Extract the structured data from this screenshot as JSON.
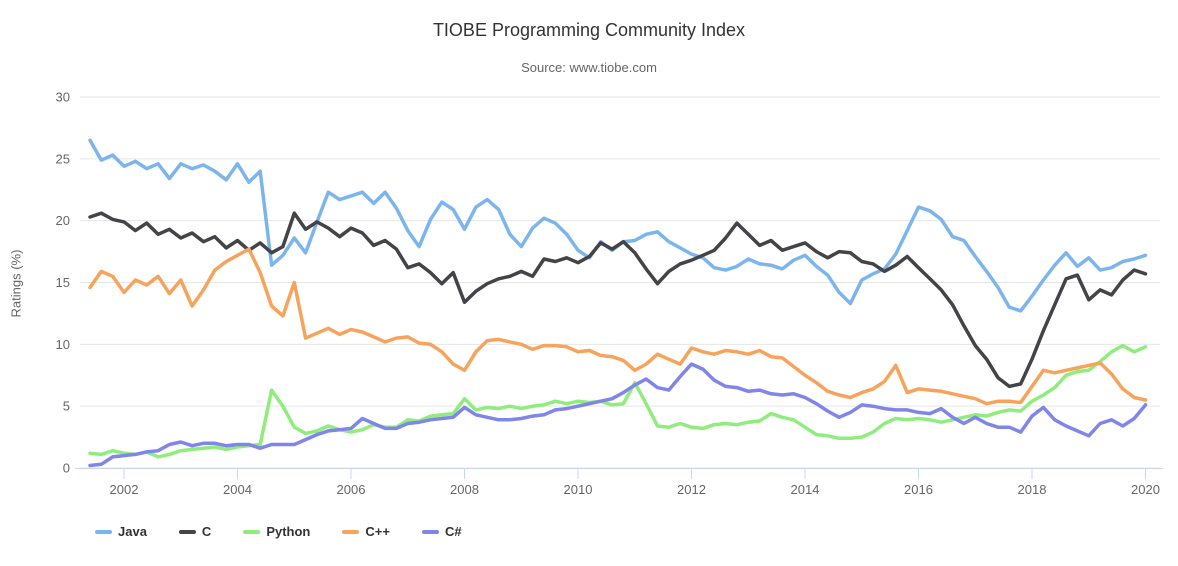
{
  "chart_data": {
    "type": "line",
    "title": "TIOBE Programming Community Index",
    "subtitle": "Source: www.tiobe.com",
    "ylabel": "Ratings (%)",
    "ylim": [
      0,
      30
    ],
    "y_ticks": [
      0,
      5,
      10,
      15,
      20,
      25,
      30
    ],
    "x_ticks": [
      2002,
      2004,
      2006,
      2008,
      2010,
      2012,
      2014,
      2016,
      2018,
      2020
    ],
    "x_start": 2001.4,
    "x_step": 0.2,
    "grid": "horizontal",
    "legend_position": "bottom-left",
    "colors": {
      "grid_line": "#e6e6e6",
      "axis_line": "#ccd6eb",
      "tick_label": "#666666",
      "title_text": "#333333",
      "subtitle_text": "#666666"
    },
    "series": [
      {
        "name": "Java",
        "slug": "java",
        "color": "#7cb5ec",
        "values": [
          26.5,
          24.9,
          25.3,
          24.4,
          24.8,
          24.2,
          24.6,
          23.4,
          24.6,
          24.2,
          24.5,
          24.0,
          23.3,
          24.6,
          23.1,
          24.0,
          16.4,
          17.2,
          18.6,
          17.4,
          19.9,
          22.3,
          21.7,
          22.0,
          22.3,
          21.4,
          22.3,
          21.0,
          19.2,
          17.9,
          20.1,
          21.5,
          20.9,
          19.3,
          21.1,
          21.7,
          20.9,
          18.9,
          17.9,
          19.4,
          20.2,
          19.8,
          18.9,
          17.6,
          17.0,
          18.3,
          17.6,
          18.3,
          18.4,
          18.9,
          19.1,
          18.3,
          17.8,
          17.3,
          17.0,
          16.2,
          16.0,
          16.3,
          16.9,
          16.5,
          16.4,
          16.1,
          16.8,
          17.2,
          16.3,
          15.6,
          14.2,
          13.3,
          15.2,
          15.7,
          16.1,
          17.3,
          19.2,
          21.1,
          20.8,
          20.1,
          18.7,
          18.4,
          17.1,
          15.9,
          14.6,
          13.0,
          12.7,
          13.9,
          15.2,
          16.4,
          17.4,
          16.3,
          17.0,
          16.0,
          16.2,
          16.7,
          16.9,
          17.2
        ]
      },
      {
        "name": "C",
        "slug": "c",
        "color": "#434348",
        "values": [
          20.3,
          20.6,
          20.1,
          19.9,
          19.2,
          19.8,
          18.9,
          19.3,
          18.6,
          19.0,
          18.3,
          18.7,
          17.8,
          18.4,
          17.6,
          18.2,
          17.4,
          17.9,
          20.6,
          19.3,
          19.9,
          19.4,
          18.7,
          19.4,
          19.0,
          18.0,
          18.4,
          17.7,
          16.2,
          16.5,
          15.8,
          14.9,
          15.8,
          13.4,
          14.3,
          14.9,
          15.3,
          15.5,
          15.9,
          15.5,
          16.9,
          16.7,
          17.0,
          16.6,
          17.1,
          18.2,
          17.7,
          18.3,
          17.4,
          16.1,
          14.9,
          15.9,
          16.5,
          16.8,
          17.2,
          17.6,
          18.6,
          19.8,
          18.9,
          18.0,
          18.4,
          17.6,
          17.9,
          18.2,
          17.5,
          17.0,
          17.5,
          17.4,
          16.7,
          16.5,
          15.9,
          16.4,
          17.1,
          16.2,
          15.3,
          14.4,
          13.2,
          11.5,
          9.9,
          8.8,
          7.3,
          6.6,
          6.8,
          8.8,
          11.1,
          13.2,
          15.3,
          15.6,
          13.6,
          14.4,
          14.0,
          15.2,
          16.0,
          15.7
        ]
      },
      {
        "name": "Python",
        "slug": "python",
        "color": "#90ed7d",
        "values": [
          1.2,
          1.1,
          1.4,
          1.2,
          1.1,
          1.3,
          0.9,
          1.1,
          1.4,
          1.5,
          1.6,
          1.7,
          1.5,
          1.7,
          1.8,
          1.9,
          6.3,
          5.0,
          3.3,
          2.8,
          3.0,
          3.4,
          3.1,
          2.9,
          3.1,
          3.5,
          3.3,
          3.3,
          3.9,
          3.8,
          4.2,
          4.3,
          4.4,
          5.6,
          4.7,
          4.9,
          4.8,
          5.0,
          4.8,
          5.0,
          5.1,
          5.4,
          5.2,
          5.4,
          5.3,
          5.4,
          5.1,
          5.2,
          6.9,
          5.2,
          3.4,
          3.3,
          3.6,
          3.3,
          3.2,
          3.5,
          3.6,
          3.5,
          3.7,
          3.8,
          4.4,
          4.1,
          3.9,
          3.3,
          2.7,
          2.6,
          2.4,
          2.4,
          2.5,
          2.9,
          3.6,
          4.0,
          3.9,
          4.0,
          3.9,
          3.7,
          3.9,
          4.1,
          4.3,
          4.2,
          4.5,
          4.7,
          4.6,
          5.4,
          5.9,
          6.5,
          7.5,
          7.8,
          7.9,
          8.6,
          9.4,
          9.9,
          9.4,
          9.8
        ]
      },
      {
        "name": "C++",
        "slug": "cpp",
        "color": "#f7a35c",
        "values": [
          14.6,
          15.9,
          15.5,
          14.2,
          15.2,
          14.8,
          15.5,
          14.1,
          15.2,
          13.1,
          14.4,
          16.0,
          16.7,
          17.2,
          17.7,
          15.8,
          13.1,
          12.3,
          15.0,
          10.5,
          10.9,
          11.3,
          10.8,
          11.2,
          11.0,
          10.6,
          10.2,
          10.5,
          10.6,
          10.1,
          10.0,
          9.4,
          8.4,
          7.9,
          9.4,
          10.3,
          10.4,
          10.2,
          10.0,
          9.6,
          9.9,
          9.9,
          9.8,
          9.4,
          9.5,
          9.1,
          9.0,
          8.7,
          7.9,
          8.4,
          9.2,
          8.8,
          8.4,
          9.7,
          9.4,
          9.2,
          9.5,
          9.4,
          9.2,
          9.5,
          9.0,
          8.9,
          8.2,
          7.5,
          6.9,
          6.2,
          5.9,
          5.7,
          6.1,
          6.4,
          7.0,
          8.3,
          6.1,
          6.4,
          6.3,
          6.2,
          6.0,
          5.8,
          5.6,
          5.2,
          5.4,
          5.4,
          5.3,
          6.6,
          7.9,
          7.7,
          7.9,
          8.1,
          8.3,
          8.5,
          7.6,
          6.4,
          5.7,
          5.5
        ]
      },
      {
        "name": "C#",
        "slug": "csharp",
        "color": "#8085e9",
        "values": [
          0.2,
          0.3,
          0.9,
          1.0,
          1.1,
          1.3,
          1.4,
          1.9,
          2.1,
          1.8,
          2.0,
          2.0,
          1.8,
          1.9,
          1.9,
          1.6,
          1.9,
          1.9,
          1.9,
          2.3,
          2.7,
          3.0,
          3.1,
          3.2,
          4.0,
          3.6,
          3.2,
          3.2,
          3.6,
          3.7,
          3.9,
          4.0,
          4.1,
          4.9,
          4.3,
          4.1,
          3.9,
          3.9,
          4.0,
          4.2,
          4.3,
          4.7,
          4.8,
          5.0,
          5.2,
          5.4,
          5.6,
          6.1,
          6.7,
          7.2,
          6.5,
          6.3,
          7.4,
          8.4,
          8.0,
          7.1,
          6.6,
          6.5,
          6.2,
          6.3,
          6.0,
          5.9,
          6.0,
          5.7,
          5.2,
          4.6,
          4.1,
          4.5,
          5.1,
          5.0,
          4.8,
          4.7,
          4.7,
          4.5,
          4.4,
          4.8,
          4.1,
          3.6,
          4.1,
          3.6,
          3.3,
          3.3,
          2.9,
          4.2,
          4.9,
          3.9,
          3.4,
          3.0,
          2.6,
          3.6,
          3.9,
          3.4,
          4.0,
          5.1
        ]
      }
    ]
  }
}
